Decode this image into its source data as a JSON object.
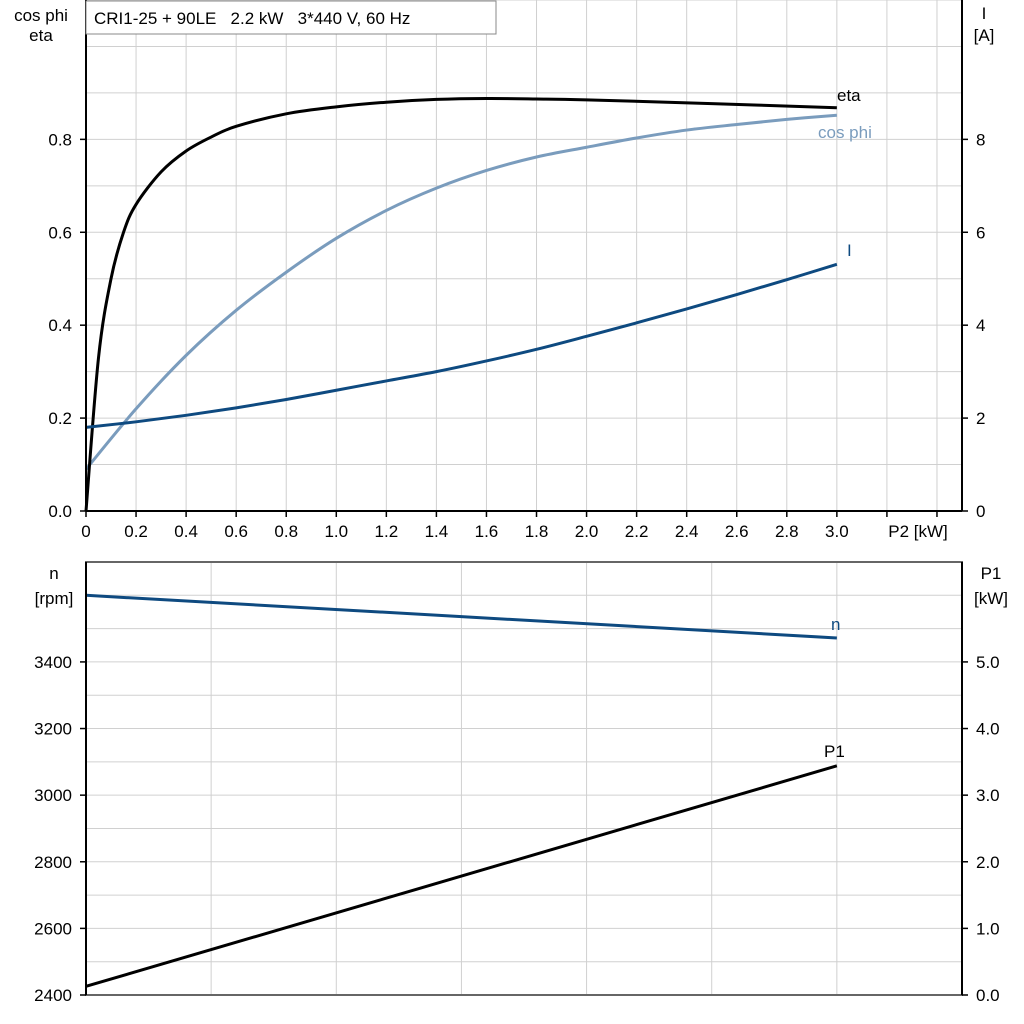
{
  "chart_data": [
    {
      "type": "line",
      "title": "CRI1-25 + 90LE   2.2 kW   3*440 V, 60 Hz",
      "xlabel": "P2 [kW]",
      "ylabel_left": [
        "cos phi",
        "eta"
      ],
      "ylabel_right": [
        "I",
        "[A]"
      ],
      "xlim": [
        0,
        3.5
      ],
      "ylim_left": [
        0,
        1.1
      ],
      "ylim_right": [
        0,
        11
      ],
      "x_ticks": [
        "0",
        "0.2",
        "0.4",
        "0.6",
        "0.8",
        "1.0",
        "1.2",
        "1.4",
        "1.6",
        "1.8",
        "2.0",
        "2.2",
        "2.4",
        "2.6",
        "2.8",
        "3.0"
      ],
      "y_ticks_left": [
        "0.0",
        "0.2",
        "0.4",
        "0.6",
        "0.8"
      ],
      "y_ticks_right": [
        "0",
        "2",
        "4",
        "6",
        "8"
      ],
      "grid": true,
      "series": [
        {
          "name": "eta",
          "axis": "left",
          "color": "#000000",
          "x": [
            0,
            0.05,
            0.1,
            0.15,
            0.2,
            0.3,
            0.4,
            0.5,
            0.6,
            0.8,
            1.0,
            1.2,
            1.4,
            1.6,
            1.8,
            2.0,
            2.5,
            3.0
          ],
          "y": [
            0,
            0.33,
            0.5,
            0.6,
            0.66,
            0.73,
            0.775,
            0.805,
            0.828,
            0.855,
            0.87,
            0.88,
            0.886,
            0.888,
            0.887,
            0.885,
            0.877,
            0.868
          ]
        },
        {
          "name": "cos phi",
          "axis": "left",
          "color": "#7a9cbd",
          "x": [
            0,
            0.2,
            0.4,
            0.6,
            0.8,
            1.0,
            1.2,
            1.4,
            1.6,
            1.8,
            2.0,
            2.2,
            2.4,
            2.6,
            2.8,
            3.0
          ],
          "y": [
            0.09,
            0.22,
            0.335,
            0.432,
            0.514,
            0.587,
            0.647,
            0.695,
            0.733,
            0.762,
            0.783,
            0.803,
            0.82,
            0.832,
            0.843,
            0.852
          ]
        },
        {
          "name": "I",
          "axis": "right",
          "color": "#0e4a80",
          "x": [
            0,
            0.2,
            0.4,
            0.6,
            0.8,
            1.0,
            1.2,
            1.4,
            1.6,
            1.8,
            2.0,
            2.2,
            2.4,
            2.6,
            2.8,
            3.0
          ],
          "y": [
            1.8,
            1.92,
            2.06,
            2.22,
            2.4,
            2.6,
            2.8,
            3.0,
            3.23,
            3.48,
            3.76,
            4.05,
            4.35,
            4.66,
            4.98,
            5.31
          ]
        }
      ]
    },
    {
      "type": "line",
      "ylabel_left": [
        "n",
        "[rpm]"
      ],
      "ylabel_right": [
        "P1",
        "[kW]"
      ],
      "xlim": [
        0,
        3.5
      ],
      "ylim_left": [
        2400,
        3700
      ],
      "ylim_right": [
        0,
        6.5
      ],
      "y_ticks_left": [
        "2400",
        "2600",
        "2800",
        "3000",
        "3200",
        "3400"
      ],
      "y_ticks_right": [
        "0.0",
        "1.0",
        "2.0",
        "3.0",
        "4.0",
        "5.0"
      ],
      "grid": true,
      "series": [
        {
          "name": "n",
          "axis": "left",
          "color": "#0e4a80",
          "x": [
            0,
            3.0
          ],
          "y": [
            3600,
            3472
          ]
        },
        {
          "name": "P1",
          "axis": "right",
          "color": "#000000",
          "x": [
            0,
            3.0
          ],
          "y": [
            0.13,
            3.44
          ]
        }
      ]
    }
  ]
}
